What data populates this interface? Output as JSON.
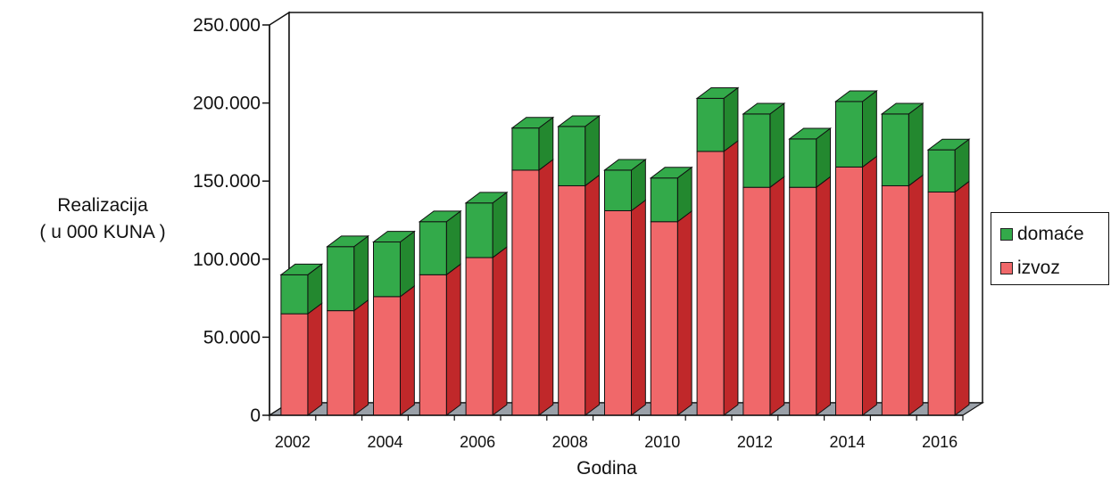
{
  "chart_data": {
    "type": "bar",
    "stacked": true,
    "style": "3d",
    "x": [
      2002,
      2003,
      2004,
      2005,
      2006,
      2007,
      2008,
      2009,
      2010,
      2011,
      2012,
      2013,
      2014,
      2015,
      2016
    ],
    "x_tick_labels": [
      "2002",
      "",
      "2004",
      "",
      "2006",
      "",
      "2008",
      "",
      "2010",
      "",
      "2012",
      "",
      "2014",
      "",
      "2016"
    ],
    "series": [
      {
        "name": "izvoz",
        "color": "#f0686a",
        "side_color": "#c0282a",
        "values": [
          65000,
          67000,
          76000,
          90000,
          101000,
          157000,
          147000,
          131000,
          124000,
          169000,
          146000,
          146000,
          159000,
          147000,
          143000
        ]
      },
      {
        "name": "domaće",
        "color": "#33aa4a",
        "side_color": "#23882f",
        "values": [
          25000,
          41000,
          35000,
          34000,
          35000,
          27000,
          38000,
          26000,
          28000,
          34000,
          47000,
          31000,
          42000,
          46000,
          27000
        ]
      }
    ],
    "ylim": [
      0,
      250000
    ],
    "y_ticks": [
      "0",
      "50.000",
      "100.000",
      "150.000",
      "200.000",
      "250.000"
    ],
    "ylabel": [
      "Realizacija",
      "( u 000 KUNA )"
    ],
    "xlabel": "Godina",
    "legend_position": "right"
  }
}
